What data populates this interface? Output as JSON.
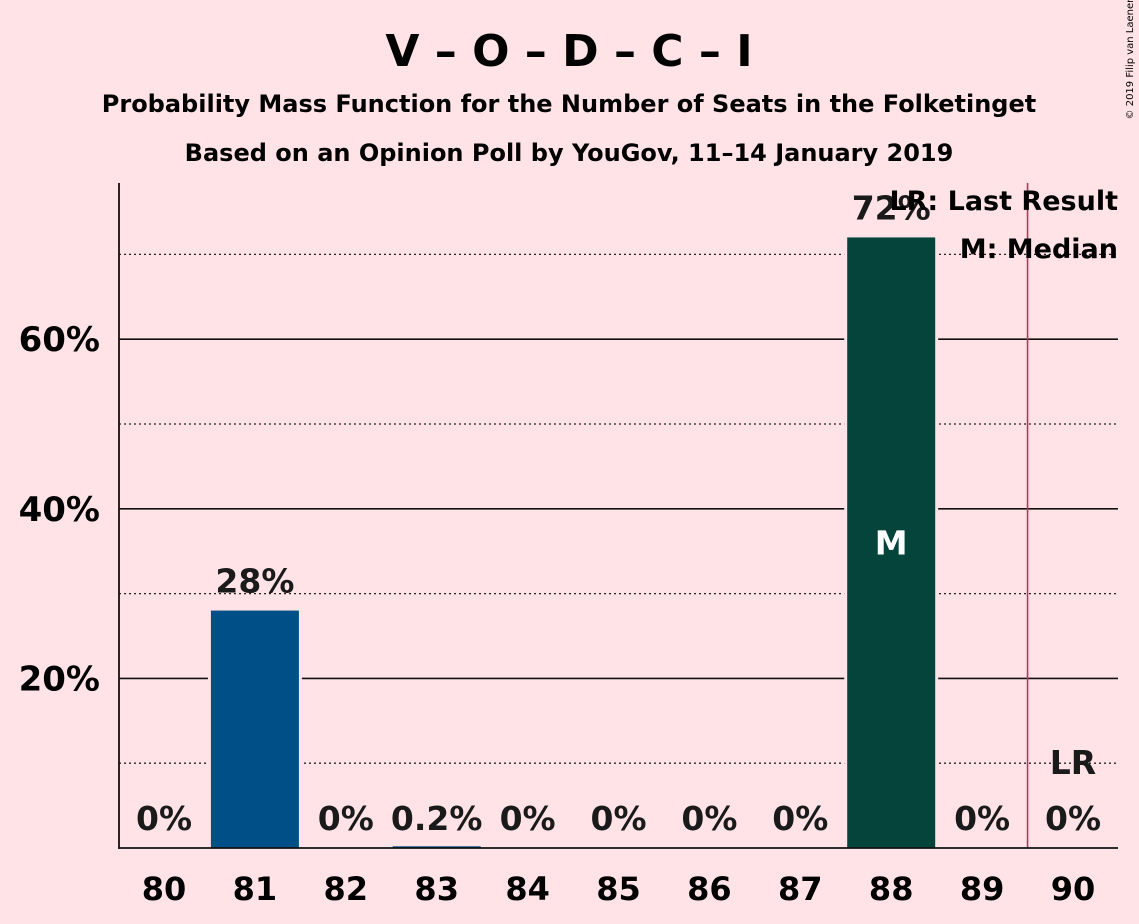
{
  "title": "V – O – D – C – I",
  "subtitle1": "Probability Mass Function for the Number of Seats in the Folketinget",
  "subtitle2": "Based on an Opinion Poll by YouGov, 11–14 January 2019",
  "copyright": "© 2019 Filip van Laenen",
  "legend": {
    "last_result": "LR: Last Result",
    "median": "M: Median"
  },
  "colors": {
    "background": "#FFE3E7",
    "bar_default": "#005088",
    "bar_median": "#04443B",
    "last_result_line": "#C0305A"
  },
  "chart_data": {
    "type": "bar",
    "x": [
      80,
      81,
      82,
      83,
      84,
      85,
      86,
      87,
      88,
      89,
      90
    ],
    "values": [
      0,
      28,
      0,
      0.2,
      0,
      0,
      0,
      0,
      72,
      0,
      0
    ],
    "labels": [
      "0%",
      "28%",
      "0%",
      "0.2%",
      "0%",
      "0%",
      "0%",
      "0%",
      "72%",
      "0%",
      "0%"
    ],
    "yticks": [
      20,
      40,
      60
    ],
    "ytick_labels": [
      "20%",
      "40%",
      "60%"
    ],
    "ylim": [
      0,
      78
    ],
    "minor_gridlines": [
      10,
      30,
      50,
      70
    ],
    "median": 88,
    "median_marker": "M",
    "last_result": 90,
    "last_result_marker": "LR"
  }
}
